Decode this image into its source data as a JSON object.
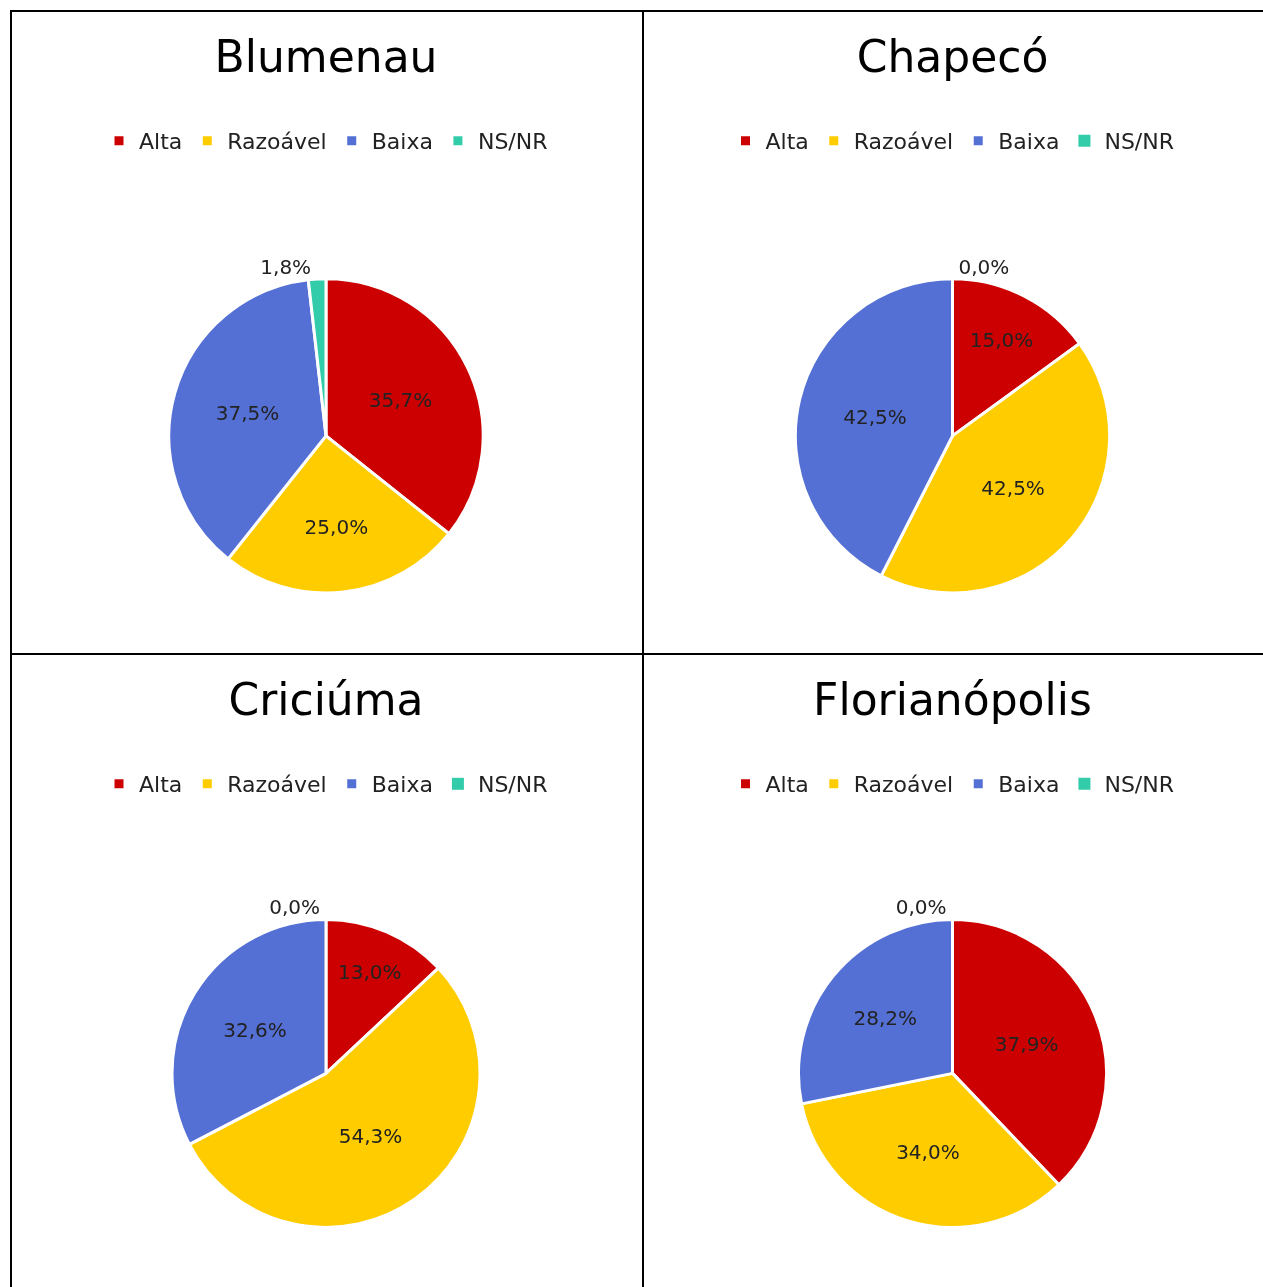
{
  "chart_data": [
    {
      "type": "pie",
      "title": "Blumenau",
      "categories": [
        "Alta",
        "Razoável",
        "Baixa",
        "NS/NR"
      ],
      "values": [
        35.7,
        25.0,
        37.5,
        1.8
      ],
      "value_labels": [
        "35,7%",
        "25,0%",
        "37,5%",
        "1,8%"
      ],
      "colors": [
        "#cc0000",
        "#ffcc00",
        "#5470d4",
        "#33ccaa"
      ],
      "legend": "top"
    },
    {
      "type": "pie",
      "title": "Chapecó",
      "categories": [
        "Alta",
        "Razoável",
        "Baixa",
        "NS/NR"
      ],
      "values": [
        15.0,
        42.5,
        42.5,
        0.0
      ],
      "value_labels": [
        "15,0%",
        "42,5%",
        "42,5%",
        "0,0%"
      ],
      "colors": [
        "#cc0000",
        "#ffcc00",
        "#5470d4",
        "#33ccaa"
      ],
      "legend": "top"
    },
    {
      "type": "pie",
      "title": "Criciúma",
      "categories": [
        "Alta",
        "Razoável",
        "Baixa",
        "NS/NR"
      ],
      "values": [
        13.0,
        54.3,
        32.6,
        0.0
      ],
      "value_labels": [
        "13,0%",
        "54,3%",
        "32,6%",
        "0,0%"
      ],
      "colors": [
        "#cc0000",
        "#ffcc00",
        "#5470d4",
        "#33ccaa"
      ],
      "legend": "top"
    },
    {
      "type": "pie",
      "title": "Florianópolis",
      "categories": [
        "Alta",
        "Razoável",
        "Baixa",
        "NS/NR"
      ],
      "values": [
        37.9,
        34.0,
        28.2,
        0.0
      ],
      "value_labels": [
        "37,9%",
        "34,0%",
        "28,2%",
        "0,0%"
      ],
      "colors": [
        "#cc0000",
        "#ffcc00",
        "#5470d4",
        "#33ccaa"
      ],
      "legend": "top"
    }
  ]
}
